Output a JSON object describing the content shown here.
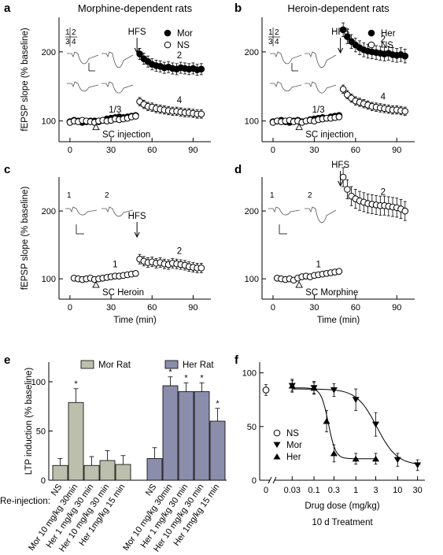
{
  "chart_data": [
    {
      "id": "a",
      "type": "scatter",
      "panel_label": "a",
      "title": "Morphine-dependent rats",
      "ylabel": "fEPSP slope (% baseline)",
      "xlabel": "",
      "xlim": [
        -8,
        103
      ],
      "ylim": [
        70,
        250
      ],
      "xticks": [
        0,
        30,
        60,
        90
      ],
      "yticks": [
        100,
        200
      ],
      "legend": {
        "position": "top-right",
        "entries": [
          "Mor",
          "NS"
        ]
      },
      "inset_numbers": [
        "1",
        "2",
        "3",
        "4"
      ],
      "annotations": {
        "hfs": "HFS",
        "sc": "SC injection",
        "l13": "1/3",
        "l2": "2",
        "l4": "4"
      },
      "series": [
        {
          "name": "Mor",
          "marker": "filled-circle",
          "x": [
            0,
            3,
            6,
            9,
            12,
            15,
            18,
            21,
            24,
            27,
            30,
            33,
            36,
            39,
            42,
            45,
            48,
            51,
            54,
            57,
            60,
            63,
            66,
            69,
            72,
            75,
            78,
            81,
            84,
            87,
            90,
            93,
            96
          ],
          "y": [
            99,
            101,
            100,
            98,
            99,
            100,
            100,
            99,
            101,
            103,
            104,
            105,
            106,
            105,
            106,
            107,
            108,
            197,
            190,
            186,
            182,
            180,
            179,
            177,
            178,
            176,
            175,
            177,
            176,
            175,
            176,
            174,
            175
          ],
          "err": 8
        },
        {
          "name": "NS",
          "marker": "open-circle",
          "x": [
            0,
            3,
            6,
            9,
            12,
            15,
            18,
            21,
            24,
            27,
            30,
            33,
            36,
            39,
            42,
            45,
            48,
            51,
            54,
            57,
            60,
            63,
            66,
            69,
            72,
            75,
            78,
            81,
            84,
            87,
            90,
            93,
            96
          ],
          "y": [
            98,
            100,
            99,
            101,
            100,
            99,
            98,
            100,
            101,
            100,
            101,
            103,
            102,
            103,
            104,
            106,
            107,
            128,
            124,
            121,
            120,
            118,
            117,
            116,
            115,
            114,
            114,
            113,
            112,
            112,
            111,
            110,
            110
          ],
          "err": 6
        }
      ]
    },
    {
      "id": "b",
      "type": "scatter",
      "panel_label": "b",
      "title": "Heroin-dependent rats",
      "ylabel": "",
      "xlabel": "",
      "xlim": [
        -8,
        103
      ],
      "ylim": [
        70,
        250
      ],
      "xticks": [
        0,
        30,
        60,
        90
      ],
      "yticks": [
        100,
        200
      ],
      "legend": {
        "position": "top-right",
        "entries": [
          "Her",
          "NS"
        ]
      },
      "inset_numbers": [
        "1",
        "2",
        "3",
        "4"
      ],
      "annotations": {
        "hfs": "HFS",
        "sc": "SC injection",
        "l13": "1/3",
        "l2": "2",
        "l4": "4"
      },
      "series": [
        {
          "name": "Her",
          "marker": "filled-circle",
          "x": [
            0,
            3,
            6,
            9,
            12,
            15,
            18,
            21,
            24,
            27,
            30,
            33,
            36,
            39,
            42,
            45,
            48,
            51,
            54,
            57,
            60,
            63,
            66,
            69,
            72,
            75,
            78,
            81,
            84,
            87,
            90,
            93,
            96
          ],
          "y": [
            99,
            100,
            101,
            99,
            98,
            100,
            101,
            99,
            100,
            102,
            103,
            104,
            105,
            104,
            106,
            107,
            108,
            232,
            222,
            215,
            210,
            206,
            203,
            201,
            200,
            199,
            198,
            197,
            198,
            196,
            195,
            196,
            194
          ],
          "err": 10
        },
        {
          "name": "NS",
          "marker": "open-circle",
          "x": [
            0,
            3,
            6,
            9,
            12,
            15,
            18,
            21,
            24,
            27,
            30,
            33,
            36,
            39,
            42,
            45,
            48,
            51,
            54,
            57,
            60,
            63,
            66,
            69,
            72,
            75,
            78,
            81,
            84,
            87,
            90,
            93,
            96
          ],
          "y": [
            98,
            100,
            99,
            100,
            101,
            99,
            100,
            98,
            100,
            101,
            100,
            102,
            103,
            104,
            104,
            105,
            106,
            146,
            138,
            133,
            129,
            127,
            125,
            123,
            121,
            120,
            119,
            118,
            117,
            116,
            116,
            115,
            114
          ],
          "err": 6
        }
      ]
    },
    {
      "id": "c",
      "type": "scatter",
      "panel_label": "c",
      "title": "",
      "ylabel": "fEPSP slope (% baseline)",
      "xlabel": "Time (min)",
      "xlim": [
        -8,
        103
      ],
      "ylim": [
        70,
        250
      ],
      "xticks": [
        0,
        30,
        60,
        90
      ],
      "yticks": [
        100,
        200
      ],
      "legend": null,
      "inset_numbers": [
        "1",
        "2"
      ],
      "annotations": {
        "hfs": "HFS",
        "sc": "SC Heroin",
        "l1": "1",
        "l2": "2"
      },
      "series": [
        {
          "name": "",
          "marker": "open-circle",
          "x": [
            3,
            6,
            9,
            12,
            15,
            18,
            21,
            24,
            27,
            30,
            33,
            36,
            39,
            42,
            45,
            48,
            51,
            54,
            57,
            60,
            63,
            66,
            69,
            72,
            75,
            78,
            81,
            84,
            87,
            90,
            93,
            96
          ],
          "y": [
            101,
            100,
            99,
            100,
            101,
            99,
            100,
            101,
            102,
            103,
            104,
            104,
            105,
            106,
            107,
            108,
            129,
            126,
            124,
            125,
            123,
            124,
            122,
            121,
            123,
            122,
            121,
            120,
            118,
            117,
            116,
            116
          ],
          "err": 7
        }
      ]
    },
    {
      "id": "d",
      "type": "scatter",
      "panel_label": "d",
      "title": "",
      "ylabel": "",
      "xlabel": "Time (min)",
      "xlim": [
        -8,
        103
      ],
      "ylim": [
        70,
        250
      ],
      "xticks": [
        0,
        30,
        60,
        90
      ],
      "yticks": [
        100,
        200
      ],
      "legend": null,
      "inset_numbers": [
        "1",
        "2"
      ],
      "annotations": {
        "hfs": "HFS",
        "sc": "SC Morphine",
        "l1": "1",
        "l2": "2"
      },
      "series": [
        {
          "name": "",
          "marker": "open-circle",
          "x": [
            3,
            6,
            9,
            12,
            15,
            18,
            21,
            24,
            27,
            30,
            33,
            36,
            39,
            42,
            45,
            48,
            51,
            54,
            57,
            60,
            63,
            66,
            69,
            72,
            75,
            78,
            81,
            84,
            87,
            90,
            93,
            96
          ],
          "y": [
            101,
            100,
            99,
            100,
            98,
            101,
            103,
            104,
            103,
            105,
            106,
            107,
            108,
            109,
            110,
            111,
            250,
            232,
            222,
            218,
            215,
            213,
            211,
            210,
            209,
            208,
            208,
            207,
            206,
            205,
            203,
            200
          ],
          "err": 14
        }
      ]
    },
    {
      "id": "e",
      "type": "bar",
      "panel_label": "e",
      "title": "",
      "ylabel": "LTP induction (% baseline)",
      "xlabel": "Re-injection:",
      "ylim": [
        0,
        120
      ],
      "yticks": [
        0,
        50,
        100
      ],
      "legend": {
        "position": "top",
        "entries": [
          "Mor Rat",
          "Her Rat"
        ]
      },
      "significance_marker": "*",
      "categories": [
        "NS",
        "Mor 10 mg/kg 30min",
        "Her 1 mg/kg 30 min",
        "Her 10 mg/kg 30 min",
        "Her  1mg/kg 15 min"
      ],
      "series": [
        {
          "name": "Mor Rat",
          "color": "#bdbfad",
          "values": [
            15,
            79,
            15,
            20,
            16
          ],
          "err": [
            7,
            14,
            9,
            10,
            9
          ],
          "significant": [
            false,
            true,
            false,
            false,
            false
          ]
        },
        {
          "name": "Her Rat",
          "color": "#8a8dab",
          "values": [
            22,
            96,
            90,
            90,
            60
          ],
          "err": [
            11,
            9,
            9,
            9,
            13
          ],
          "significant": [
            false,
            true,
            true,
            true,
            true
          ]
        }
      ]
    },
    {
      "id": "f",
      "type": "line",
      "panel_label": "f",
      "title": "",
      "ylabel": "",
      "xlabel": "Drug dose (mg/kg)",
      "subtitle": "10 d Treatment",
      "xscale": "log",
      "xlim": [
        0.013,
        45
      ],
      "ylim": [
        0,
        110
      ],
      "xticks": [
        0.03,
        0.1,
        0.3,
        1,
        3,
        10,
        30
      ],
      "xtick_labels": [
        "0.03",
        "0.1",
        "0.3",
        "1",
        "3",
        "10",
        "30"
      ],
      "zero_tick_label": "0",
      "yticks": [
        0,
        50,
        100
      ],
      "legend": {
        "position": "center-left",
        "entries": [
          "NS",
          "Mor",
          "Her"
        ]
      },
      "ns_point": {
        "x": 0,
        "y": 84,
        "err": 5
      },
      "series": [
        {
          "name": "Mor",
          "marker": "filled-triangle-down",
          "x": [
            0.03,
            0.1,
            0.3,
            1,
            3,
            10,
            30
          ],
          "y": [
            88,
            86,
            84,
            75,
            52,
            19,
            14
          ],
          "err": [
            5,
            5,
            6,
            10,
            11,
            6,
            5
          ],
          "fit": {
            "top": 85,
            "bottom": 14,
            "ec50": 3.2,
            "hill": 1.8
          }
        },
        {
          "name": "Her",
          "marker": "filled-triangle-up",
          "x": [
            0.03,
            0.1,
            0.2,
            0.3,
            1,
            3
          ],
          "y": [
            88,
            86,
            55,
            25,
            20,
            20
          ],
          "err": [
            6,
            6,
            10,
            8,
            5,
            5
          ],
          "fit": {
            "top": 86,
            "bottom": 20,
            "ec50": 0.22,
            "hill": 5
          }
        }
      ]
    }
  ]
}
